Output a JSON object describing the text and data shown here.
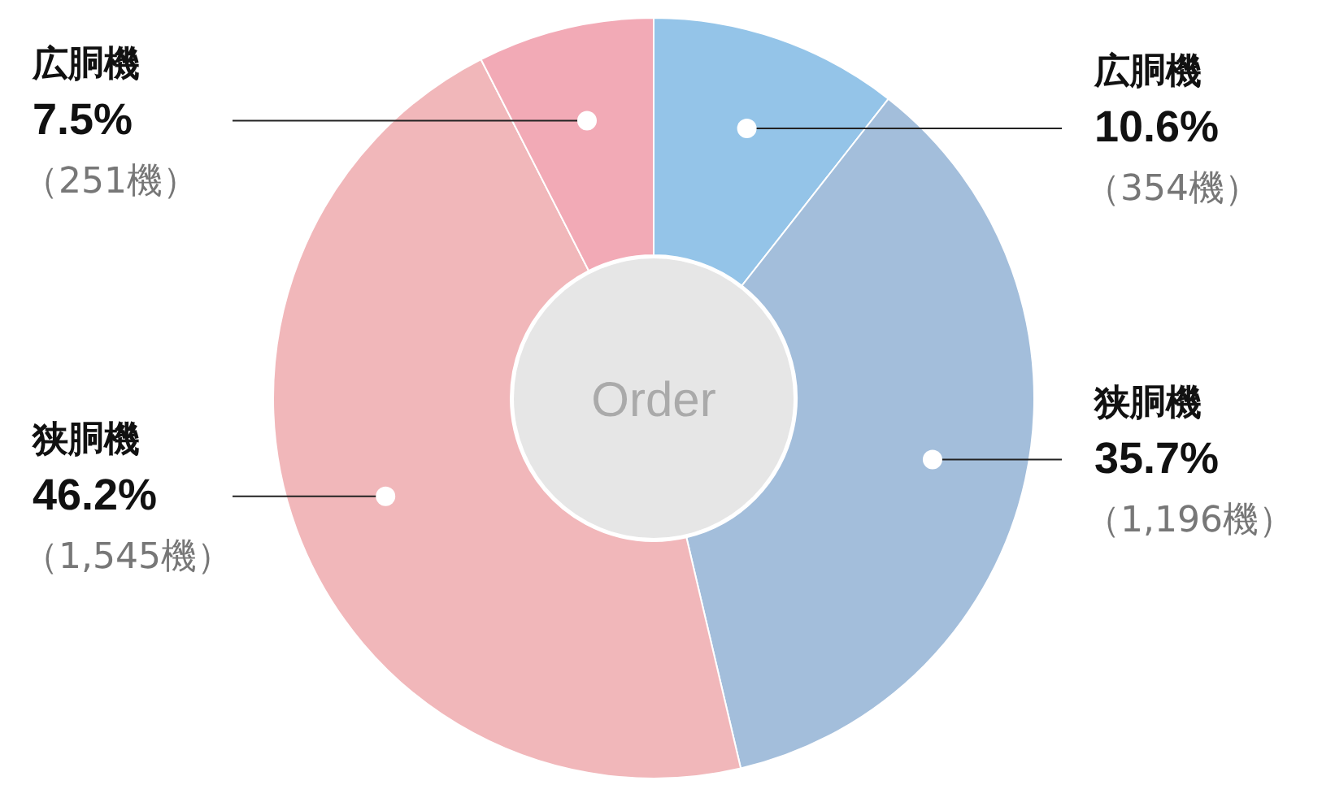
{
  "chart_data": {
    "type": "donut",
    "categories": [
      "広胴機",
      "狭胴機",
      "狭胴機",
      "広胴機"
    ],
    "values": [
      354,
      1196,
      1545,
      251
    ],
    "colors": [
      "#94c4e8",
      "#a3bedb",
      "#f1b7ba",
      "#f2aab6"
    ],
    "value_labels": [
      "10.6%\n（354機）",
      "35.7%\n（1,196機）",
      "46.2%\n（1,545機）",
      "7.5%\n（251機）"
    ],
    "annotations": [
      "Order"
    ]
  }
}
